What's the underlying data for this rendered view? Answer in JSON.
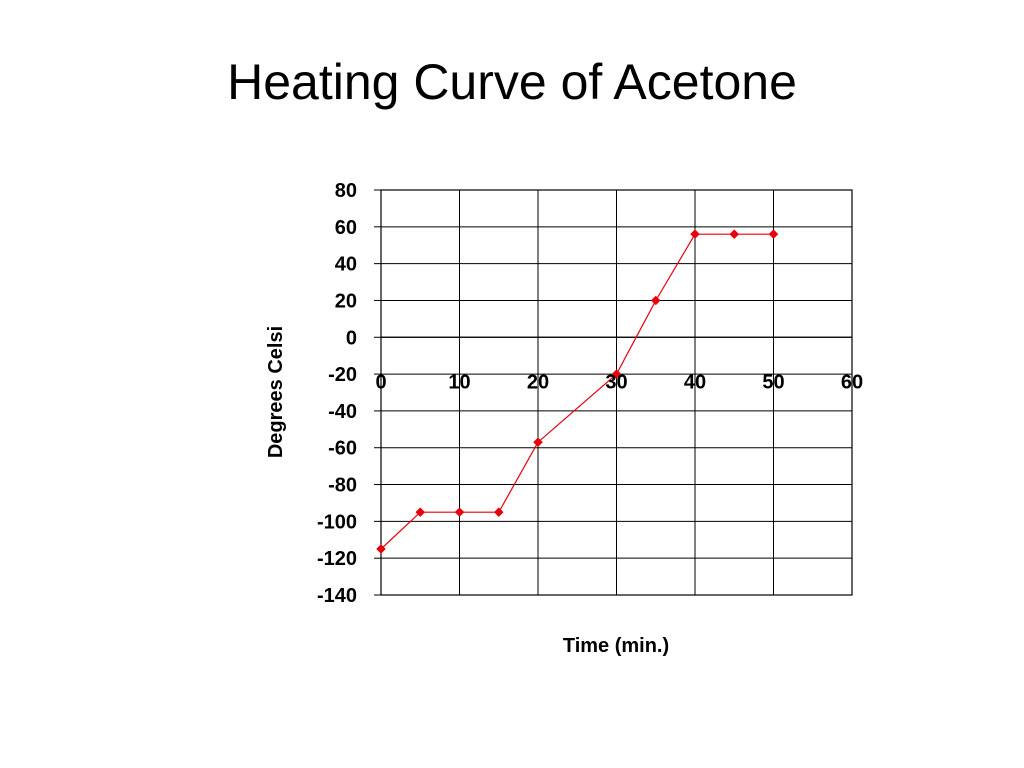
{
  "slide": {
    "title": "Heating Curve of Acetone"
  },
  "chart_data": {
    "type": "line",
    "xlabel": "Time (min.)",
    "ylabel": "Degrees Celsi",
    "xlim": [
      0,
      60
    ],
    "ylim": [
      -140,
      80
    ],
    "x_ticks": [
      "0",
      "10",
      "20",
      "30",
      "40",
      "50",
      "60"
    ],
    "y_ticks": [
      "80",
      "60",
      "40",
      "20",
      "0",
      "-20",
      "-40",
      "-60",
      "-80",
      "-100",
      "-120",
      "-140"
    ],
    "grid": true,
    "legend": "none",
    "series": [
      {
        "color": "#e8000b",
        "marker": "diamond",
        "x": [
          0,
          5,
          10,
          15,
          20,
          30,
          35,
          40,
          45,
          50
        ],
        "y": [
          -115,
          -95,
          -95,
          -95,
          -57,
          -20,
          20,
          56,
          56,
          56
        ]
      }
    ]
  }
}
